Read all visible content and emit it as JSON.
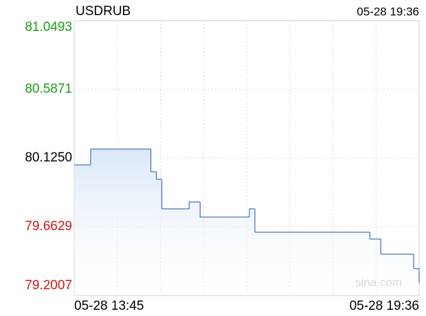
{
  "chart_data": {
    "type": "step-line",
    "title": "USDRUB",
    "updated": "05-28 19:36",
    "watermark": "sina.com",
    "categories": [
      "05-28 13:45",
      null,
      null,
      null,
      null,
      null,
      null,
      null,
      null,
      null,
      null,
      null,
      null,
      null,
      null,
      null,
      null,
      null,
      null,
      null,
      null,
      null,
      null,
      null,
      null,
      null,
      null,
      null,
      null,
      null,
      null,
      null,
      null,
      null,
      null,
      null,
      null,
      null,
      null,
      null,
      null,
      null,
      null,
      null,
      null,
      null,
      null,
      null,
      null,
      null,
      null,
      null,
      null,
      null,
      null,
      null,
      null,
      null,
      null,
      null,
      null,
      null,
      null,
      "05-28 19:36"
    ],
    "values": [
      80.0788,
      80.0788,
      80.0788,
      80.1851,
      80.1851,
      80.1851,
      80.1851,
      80.1851,
      80.1851,
      80.1851,
      80.1851,
      80.1851,
      80.1851,
      80.1851,
      80.0326,
      79.9817,
      79.783,
      79.783,
      79.783,
      79.783,
      79.783,
      79.8293,
      79.8293,
      79.7276,
      79.7276,
      79.7276,
      79.7276,
      79.7276,
      79.7276,
      79.7276,
      79.7276,
      79.7276,
      79.783,
      79.6259,
      79.6259,
      79.6259,
      79.6259,
      79.6259,
      79.6259,
      79.6259,
      79.6259,
      79.6259,
      79.6259,
      79.6259,
      79.6259,
      79.6259,
      79.6259,
      79.6259,
      79.6259,
      79.6259,
      79.6259,
      79.6259,
      79.6259,
      79.6259,
      79.5797,
      79.5797,
      79.478,
      79.478,
      79.478,
      79.478,
      79.478,
      79.478,
      79.381,
      79.2839
    ],
    "color": "#3d6eb4",
    "up_color": "#14a014",
    "down_color": "#d41414",
    "flat_color": "#000000",
    "ylim": [
      79.2007,
      81.0493
    ],
    "yticks": [
      {
        "value": 79.2007,
        "label": "79.2007"
      },
      {
        "value": 79.6629,
        "label": "79.6629"
      },
      {
        "value": 80.125,
        "label": "80.1250"
      },
      {
        "value": 80.5871,
        "label": "80.5871"
      },
      {
        "value": 81.0493,
        "label": "81.0493"
      }
    ],
    "grid": true
  }
}
